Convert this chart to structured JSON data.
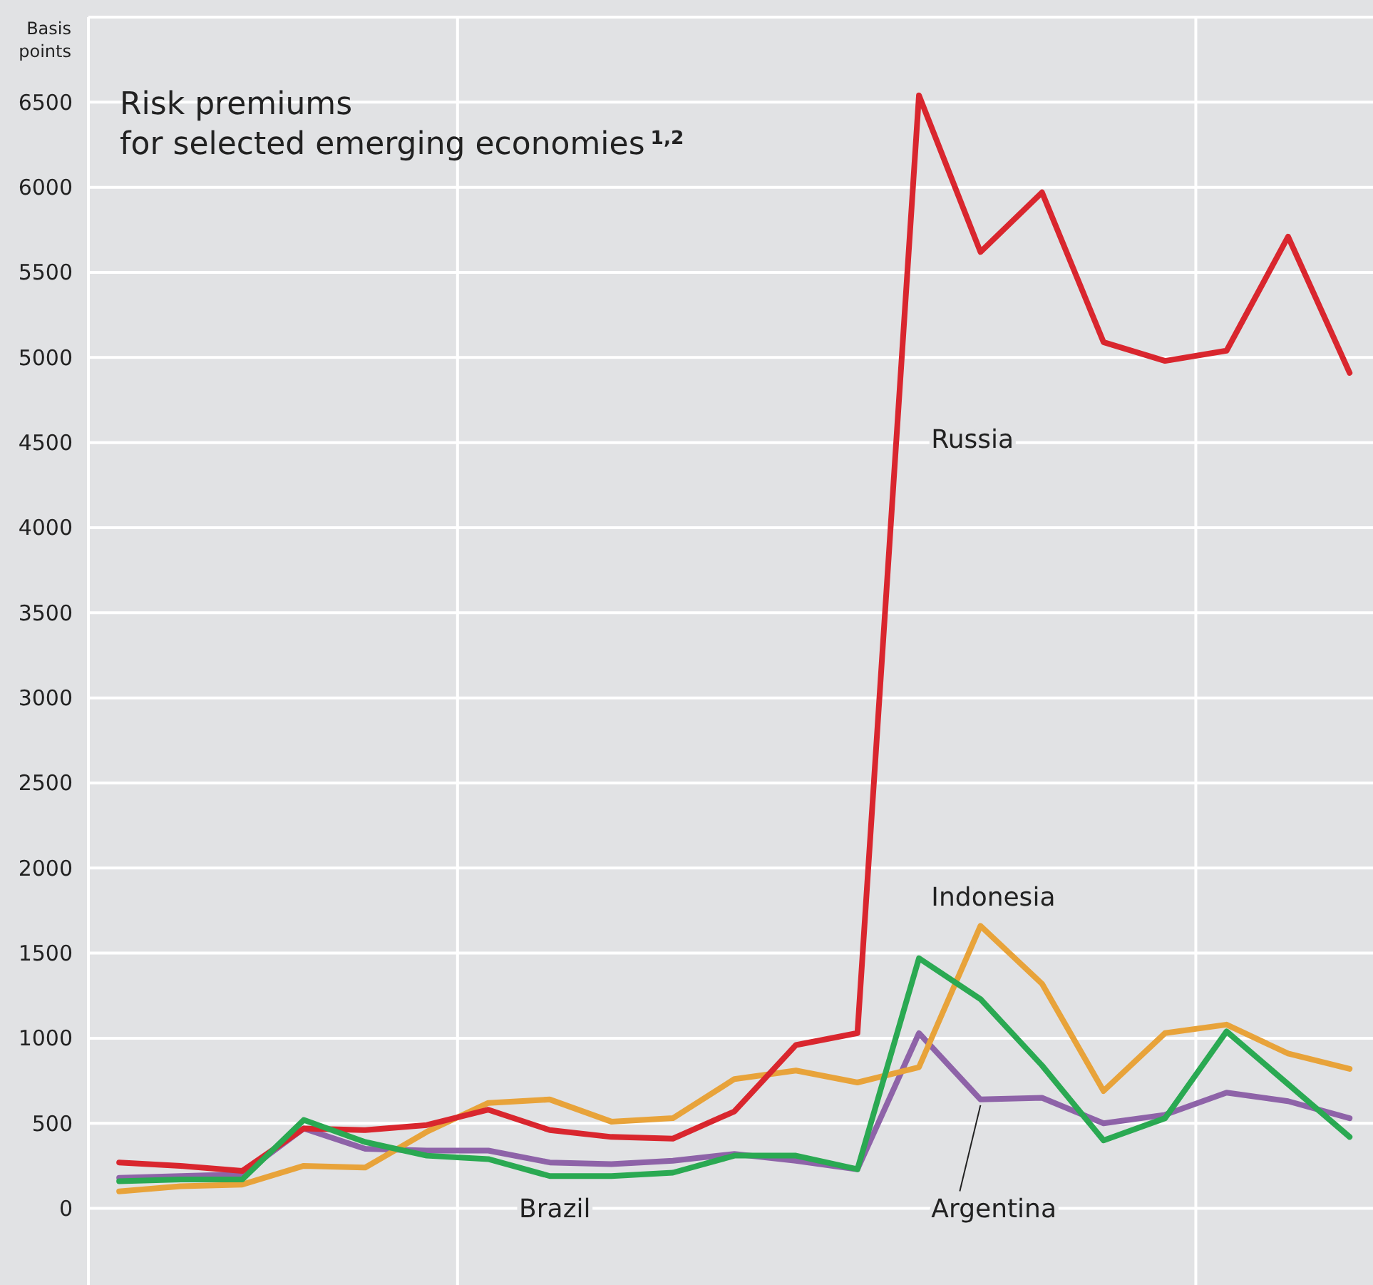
{
  "chart_data": {
    "type": "line",
    "title": "Risk premiums\nfor selected emerging economies$^{1,2}$",
    "ylabel": "Basis points",
    "categories": [
      null,
      null,
      null,
      null,
      null,
      null,
      null,
      null,
      null,
      null,
      null,
      null,
      null,
      null,
      null,
      null,
      null,
      null,
      null,
      null,
      null
    ],
    "ylim": [
      -450,
      7000
    ],
    "yticks": [
      0,
      500,
      1000,
      1500,
      2000,
      2500,
      3000,
      3500,
      4000,
      4500,
      5000,
      5500,
      6000,
      6500
    ],
    "grid": "y",
    "tick_labels": "y",
    "legend": false,
    "marker": "none",
    "line_style": "solid",
    "series": [
      {
        "name": "Argentina",
        "color": "#8e63a8",
        "values": [
          180,
          190,
          200,
          470,
          350,
          340,
          340,
          270,
          260,
          280,
          320,
          280,
          230,
          1030,
          640,
          650,
          500,
          550,
          680,
          630,
          530
        ]
      },
      {
        "name": "Indonesia",
        "color": "#e8a33a",
        "values": [
          100,
          130,
          140,
          250,
          240,
          450,
          620,
          640,
          510,
          530,
          760,
          810,
          740,
          830,
          1660,
          1320,
          690,
          1030,
          1080,
          910,
          820
        ]
      },
      {
        "name": "Russia",
        "color": "#d9262e",
        "values": [
          270,
          250,
          220,
          470,
          460,
          490,
          580,
          460,
          420,
          410,
          570,
          960,
          1030,
          6540,
          5620,
          5970,
          5090,
          4980,
          5040,
          5710,
          4910
        ]
      },
      {
        "name": "Brazil",
        "color": "#2aa952",
        "values": [
          160,
          170,
          170,
          520,
          390,
          310,
          290,
          190,
          190,
          210,
          310,
          310,
          230,
          1470,
          1230,
          840,
          400,
          530,
          1040,
          730,
          420
        ]
      }
    ]
  }
}
